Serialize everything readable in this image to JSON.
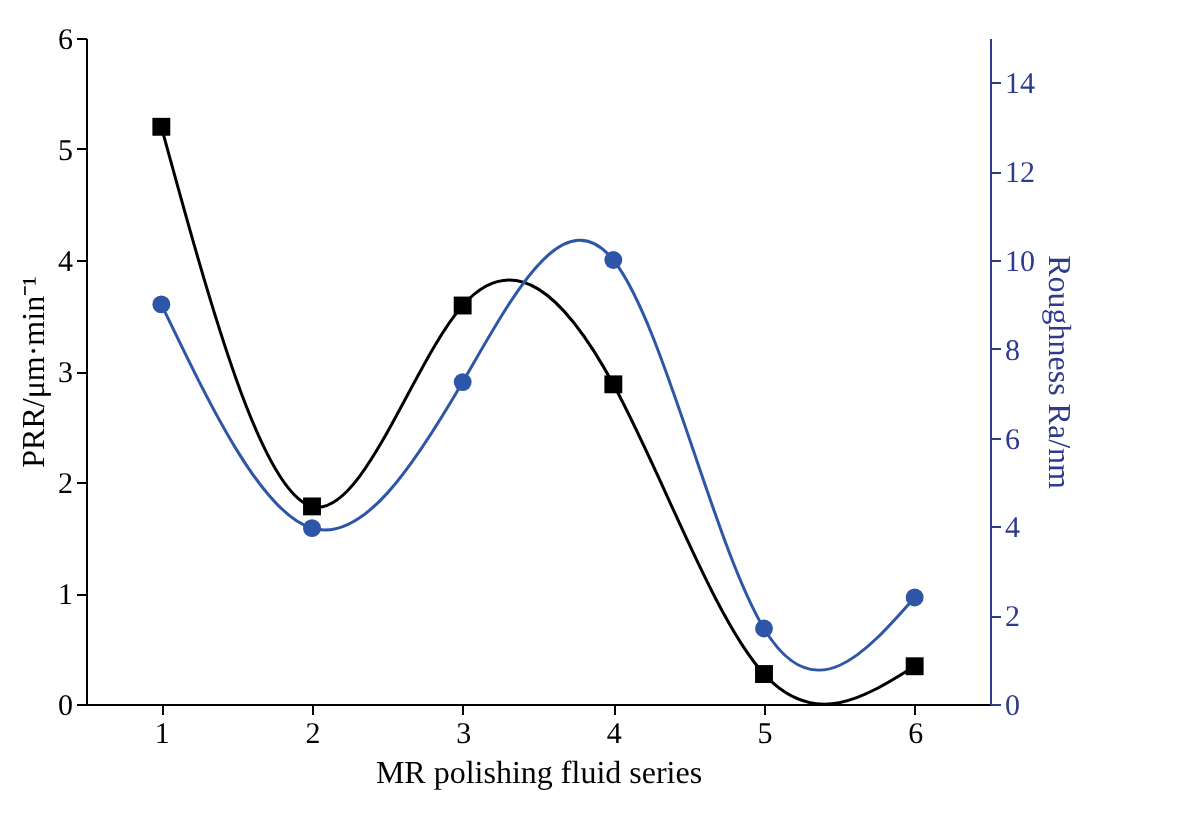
{
  "chart_data": {
    "type": "line",
    "xlabel": "MR polishing fluid series",
    "ylabel": "PRR/μm·min⁻¹",
    "y2label": "Roughness Ra/nm",
    "x": [
      1,
      2,
      3,
      4,
      5,
      6
    ],
    "xlim": [
      0.5,
      6.5
    ],
    "xticks": [
      1,
      2,
      3,
      4,
      5,
      6
    ],
    "ylim": [
      0,
      6
    ],
    "yticks": [
      0,
      1,
      2,
      3,
      4,
      5,
      6
    ],
    "y2lim": [
      0,
      15
    ],
    "y2ticks": [
      0,
      2,
      4,
      6,
      8,
      10,
      12,
      14
    ],
    "series": [
      {
        "color": "#000000",
        "marker": "square",
        "values": [
          5.2,
          1.78,
          3.59,
          2.88,
          0.27,
          0.34
        ]
      },
      {
        "color": "#2e56a6",
        "marker": "circle",
        "axis": "y2",
        "values": [
          9.0,
          3.96,
          7.25,
          10.0,
          1.7,
          2.4
        ]
      }
    ],
    "grid": false
  }
}
